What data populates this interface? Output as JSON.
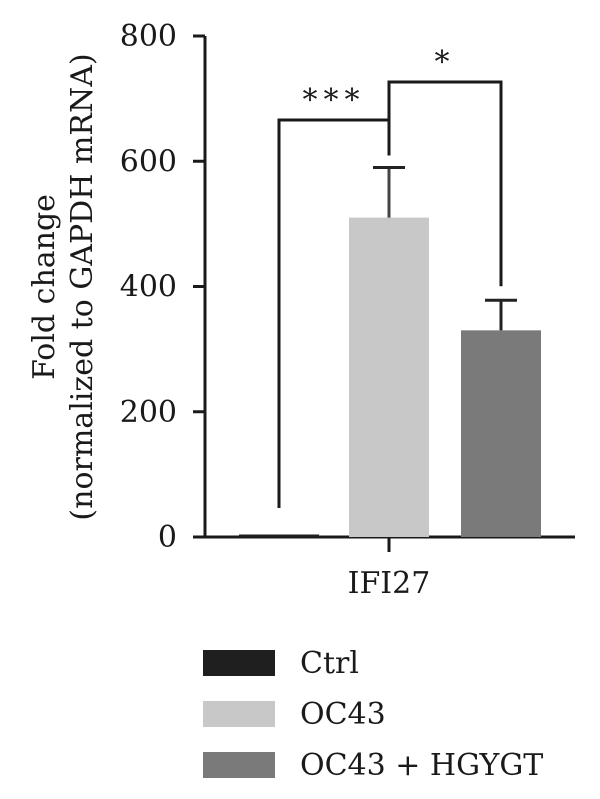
{
  "chart_data": {
    "type": "bar",
    "categories": [
      "IFI27"
    ],
    "series": [
      {
        "name": "Ctrl",
        "values": [
          4
        ],
        "error": [
          0
        ],
        "color": "#1f1f1f"
      },
      {
        "name": "OC43",
        "values": [
          510
        ],
        "error": [
          80
        ],
        "color": "#c8c8c8"
      },
      {
        "name": "OC43 + HGYGT",
        "values": [
          330
        ],
        "error": [
          48
        ],
        "color": "#7a7a7a"
      }
    ],
    "ylabel_line1": "Fold change",
    "ylabel_line2": "(normalized to GAPDH mRNA)",
    "xlabel": "",
    "ylim": [
      0,
      800
    ],
    "yticks": [
      0,
      200,
      400,
      600,
      800
    ],
    "ytick_labels": [
      "0",
      "200",
      "400",
      "600",
      "800"
    ],
    "significance": [
      {
        "between": [
          "Ctrl",
          "OC43"
        ],
        "label": "***"
      },
      {
        "between": [
          "OC43",
          "OC43 + HGYGT"
        ],
        "label": "*"
      }
    ],
    "legend": {
      "position": "bottom"
    },
    "grid": false
  }
}
